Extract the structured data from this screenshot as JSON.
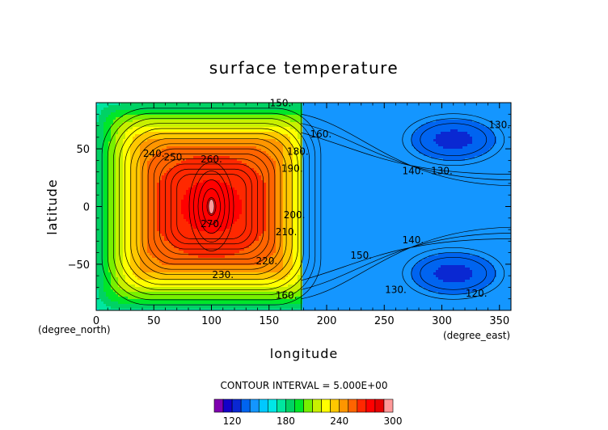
{
  "chart_data": {
    "type": "heatmap",
    "title": "surface temperature",
    "xlabel": "longitude",
    "ylabel": "latitude",
    "x_unit": "(degree_east)",
    "y_unit": "(degree_north)",
    "xlim": [
      0,
      360
    ],
    "ylim": [
      -90,
      90
    ],
    "x_ticks": [
      "0",
      "50",
      "100",
      "150",
      "200",
      "250",
      "300",
      "350"
    ],
    "y_ticks": [
      "50",
      "0",
      "−50"
    ],
    "contour_interval_text": "CONTOUR INTERVAL = 5.000E+00",
    "contour_levels_labeled": [
      {
        "label": "150.",
        "x": 160,
        "y": 87
      },
      {
        "label": "160.",
        "x": 195,
        "y": 60
      },
      {
        "label": "140.",
        "x": 275,
        "y": 28
      },
      {
        "label": "130.",
        "x": 300,
        "y": 28
      },
      {
        "label": "130.",
        "x": 350,
        "y": 68
      },
      {
        "label": "250.",
        "x": 68,
        "y": 40
      },
      {
        "label": "260.",
        "x": 100,
        "y": 38
      },
      {
        "label": "240.",
        "x": 50,
        "y": 43
      },
      {
        "label": "270.",
        "x": 100,
        "y": -18
      },
      {
        "label": "230.",
        "x": 110,
        "y": -62
      },
      {
        "label": "220.",
        "x": 148,
        "y": -50
      },
      {
        "label": "210.",
        "x": 165,
        "y": -25
      },
      {
        "label": "200.",
        "x": 172,
        "y": -10
      },
      {
        "label": "190.",
        "x": 170,
        "y": 30
      },
      {
        "label": "180.",
        "x": 175,
        "y": 45
      },
      {
        "label": "160.",
        "x": 165,
        "y": -80
      },
      {
        "label": "150.",
        "x": 230,
        "y": -45
      },
      {
        "label": "140.",
        "x": 275,
        "y": -32
      },
      {
        "label": "130.",
        "x": 260,
        "y": -75
      },
      {
        "label": "120.",
        "x": 330,
        "y": -78
      }
    ],
    "colorbar": {
      "min": 100,
      "max": 300,
      "tick_labels": [
        "120",
        "180",
        "240",
        "300"
      ],
      "tick_values": [
        120,
        180,
        240,
        300
      ],
      "levels": [
        100,
        110,
        120,
        130,
        140,
        150,
        160,
        170,
        180,
        190,
        200,
        210,
        220,
        230,
        240,
        250,
        260,
        270,
        280,
        290,
        300
      ],
      "colors": [
        "#7f00b0",
        "#1400c8",
        "#0a28d2",
        "#0064f0",
        "#1496ff",
        "#00c8ff",
        "#00e6e6",
        "#00e6a0",
        "#00d264",
        "#00e628",
        "#78f000",
        "#c8f000",
        "#ffff00",
        "#ffc800",
        "#ff9600",
        "#ff6400",
        "#ff2800",
        "#ff0000",
        "#e60000",
        "#ff9999"
      ]
    },
    "features": {
      "warm_center": {
        "lon": 100,
        "lat": 0,
        "peak": 275
      },
      "cold_centers": [
        {
          "lon": 310,
          "lat": 58,
          "min": 122
        },
        {
          "lon": 310,
          "lat": -58,
          "min": 122
        }
      ]
    }
  }
}
